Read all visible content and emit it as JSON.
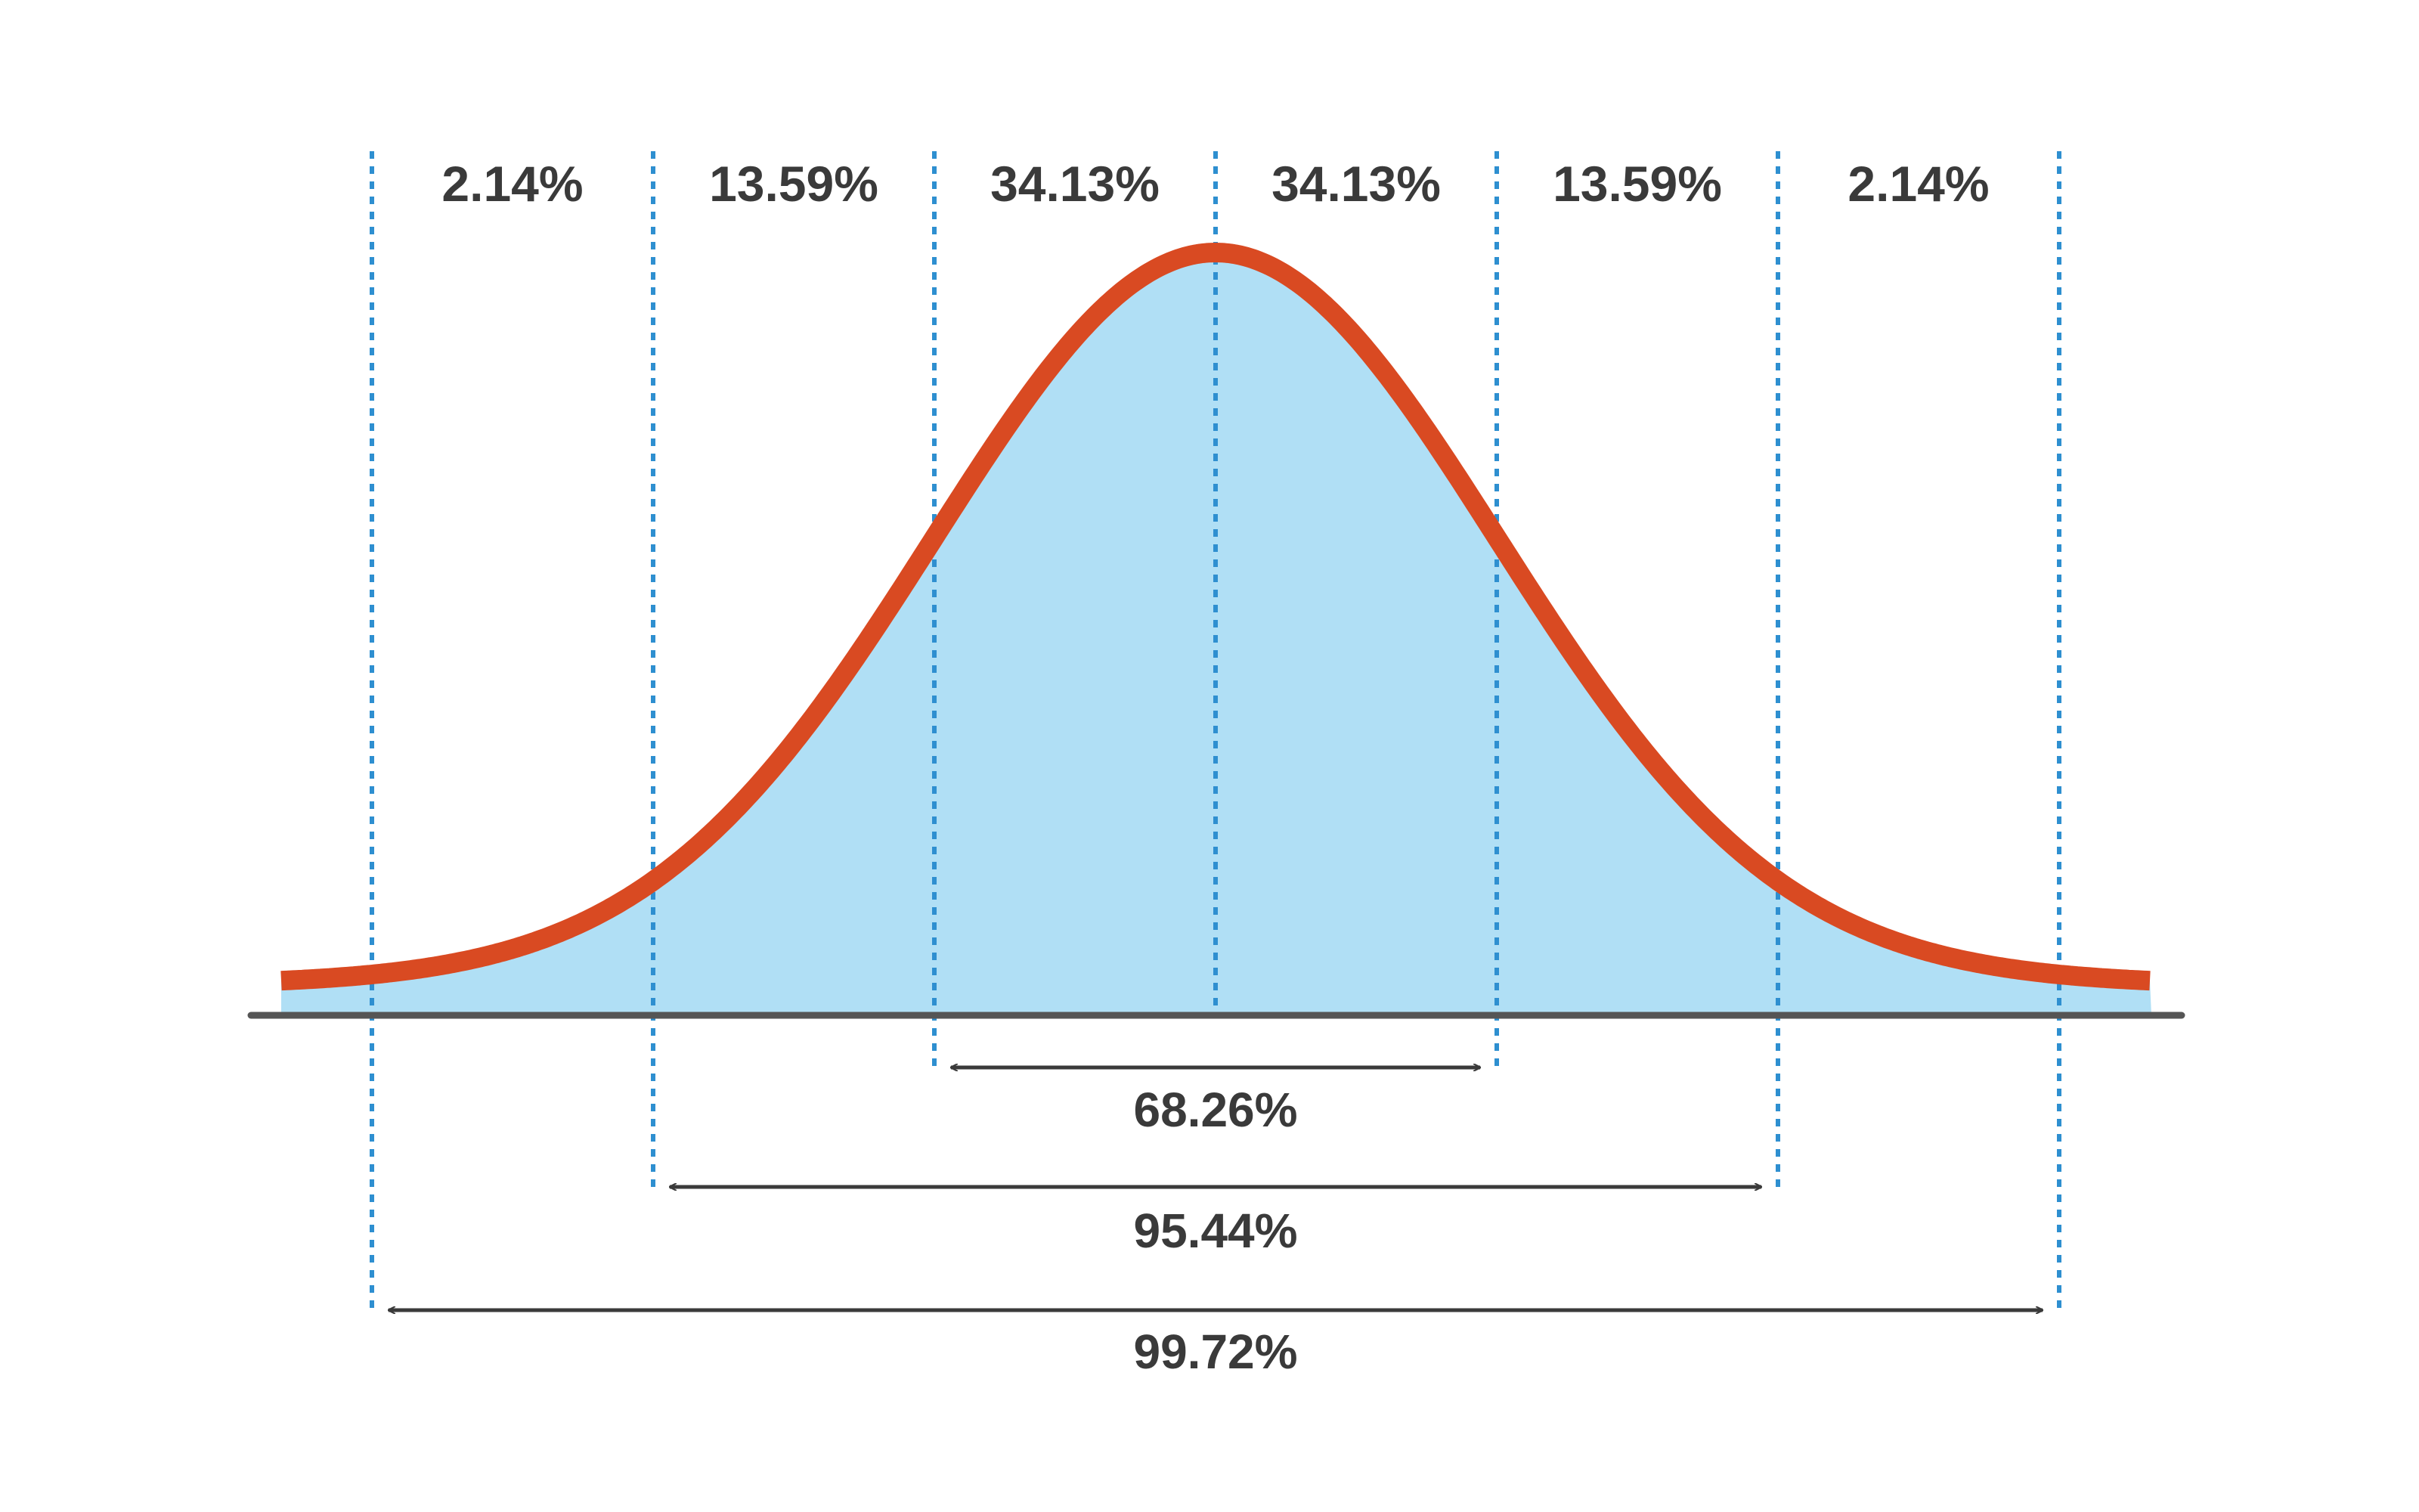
{
  "chart_data": {
    "type": "area",
    "title": "",
    "xlabel": "",
    "ylabel": "",
    "curve": "normal",
    "sigma_lines": [
      -3,
      -2,
      -1,
      0,
      1,
      2,
      3
    ],
    "segments": [
      {
        "from": -3,
        "to": -2,
        "label": "2.14%"
      },
      {
        "from": -2,
        "to": -1,
        "label": "13.59%"
      },
      {
        "from": -1,
        "to": 0,
        "label": "34.13%"
      },
      {
        "from": 0,
        "to": 1,
        "label": "34.13%"
      },
      {
        "from": 1,
        "to": 2,
        "label": "13.59%"
      },
      {
        "from": 2,
        "to": 3,
        "label": "2.14%"
      }
    ],
    "ranges": [
      {
        "from": -1,
        "to": 1,
        "label": "68.26%"
      },
      {
        "from": -2,
        "to": 2,
        "label": "95.44%"
      },
      {
        "from": -3,
        "to": 3,
        "label": "99.72%"
      }
    ],
    "colors": {
      "curve": "#d94a22",
      "fill": "#b0dff5",
      "divider": "#2e8fd0",
      "baseline": "#555555",
      "arrow": "#3a3a3a",
      "text": "#3a3a3a"
    }
  }
}
